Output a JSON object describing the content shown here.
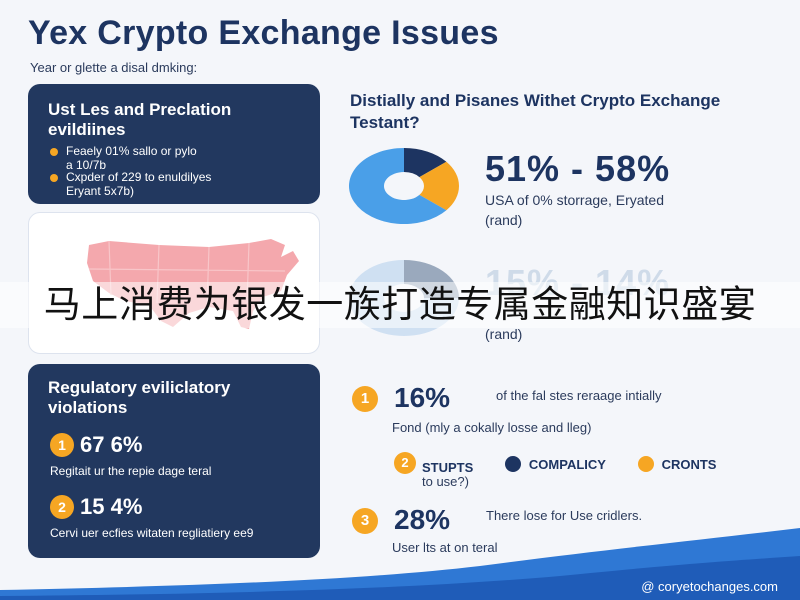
{
  "title": "Yex Crypto Exchange Issues",
  "subtitle": "Year or glette a disal dmking:",
  "card_top": {
    "heading": "Ust Les and Preclation evildiines",
    "bullet1_line1": "Feaely 01% sallo or pylo",
    "bullet1_line2": "a 10/7b",
    "bullet2_line1": "Cxpder of 229 to enuldilyes",
    "bullet2_line2": "Eryant 5x7b)"
  },
  "card_regulatory": {
    "heading": "Regulatory eviliclatory violations",
    "stat1_num": "1",
    "stat1_value": "67 6%",
    "stat1_desc": "Regitait ur the repie dage teral",
    "stat2_num": "2",
    "stat2_value": "15 4%",
    "stat2_desc": "Cervi uer ecfies witaten regliatiery ee9"
  },
  "question": "Distially and Pisanes Withet Crypto Exchange Testant?",
  "stat_a": {
    "value": "51% - 58%",
    "line1": "USA of 0% storrage, Eryated",
    "line2": "(rand)"
  },
  "stat_b": {
    "value": "15% - 14%",
    "line1": "(rand)"
  },
  "overlay_text": "马上消费为银发一族打造专属金融知识盛宴",
  "right_rows": [
    {
      "num": "1",
      "value": "16%",
      "text": "of the fal stes reraage intially",
      "sub": "Fond (mly a cokally losse and lleg)"
    },
    {
      "num": "2",
      "value": "",
      "text": "",
      "sub": "to use?)"
    },
    {
      "num": "3",
      "value": "28%",
      "text": "There lose for Use cridlers.",
      "sub": "User lts at on teral"
    }
  ],
  "legend": [
    {
      "label": "STUPTS",
      "color": "#f6a623"
    },
    {
      "label": "COMPALICY",
      "color": "#1d3461"
    },
    {
      "label": "CRONTS",
      "color": "#f6a623"
    }
  ],
  "footer": "@ coryetochanges.com",
  "colors": {
    "navy": "#22385f",
    "orange": "#f6a623",
    "blue": "#4a9fe8",
    "light_blue": "#cfe0f2",
    "map_red": "#f4a8ad"
  },
  "pie1": {
    "slices": [
      {
        "label": "navy",
        "value": 14,
        "color": "#1d3461"
      },
      {
        "label": "orange",
        "value": 22,
        "color": "#f6a623"
      },
      {
        "label": "blue",
        "value": 64,
        "color": "#4a9fe8"
      }
    ]
  },
  "pie2": {
    "slices": [
      {
        "label": "grey",
        "value": 25,
        "color": "#9aa9bd"
      },
      {
        "label": "light",
        "value": 75,
        "color": "#cfe0f2"
      }
    ]
  }
}
